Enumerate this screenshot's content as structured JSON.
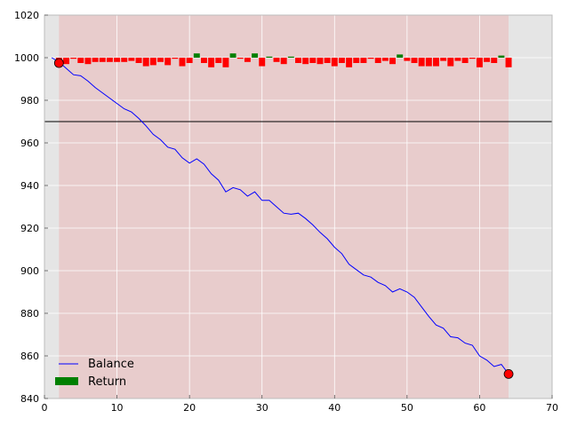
{
  "chart_data": {
    "type": "line",
    "xlim": [
      0,
      70
    ],
    "ylim": [
      840,
      1020
    ],
    "xticks": [
      0,
      10,
      20,
      30,
      40,
      50,
      60,
      70
    ],
    "yticks": [
      840,
      860,
      880,
      900,
      920,
      940,
      960,
      980,
      1000,
      1020
    ],
    "grid": true,
    "legend_position": "lower-left",
    "reference_line_y": 970,
    "shaded_x_range": [
      2,
      64
    ],
    "colors": {
      "background": "#e5e5e5",
      "shaded_region": "#e8cccc",
      "grid": "#ffffff",
      "balance_line": "#0000ff",
      "return_positive": "#008000",
      "return_negative": "#ff0000",
      "marker": "#ff0000",
      "reference_line": "#000000"
    },
    "series": [
      {
        "name": "Balance",
        "x": [
          1,
          2,
          3,
          4,
          5,
          6,
          7,
          8,
          9,
          10,
          11,
          12,
          13,
          14,
          15,
          16,
          17,
          18,
          19,
          20,
          21,
          22,
          23,
          24,
          25,
          26,
          27,
          28,
          29,
          30,
          31,
          32,
          33,
          34,
          35,
          36,
          37,
          38,
          39,
          40,
          41,
          42,
          43,
          44,
          45,
          46,
          47,
          48,
          49,
          50,
          51,
          52,
          53,
          54,
          55,
          56,
          57,
          58,
          59,
          60,
          61,
          62,
          63,
          64
        ],
        "y": [
          1000,
          998,
          995,
          992,
          991.5,
          989,
          986,
          983.5,
          981,
          978.5,
          976,
          974.5,
          971.5,
          968,
          964,
          961.5,
          958,
          957,
          953,
          950.5,
          952.5,
          950,
          945.5,
          942.5,
          937,
          939,
          938,
          935,
          937,
          933,
          933,
          930,
          927,
          926.5,
          927,
          924.5,
          921.5,
          918,
          915,
          911,
          908,
          903,
          900.5,
          898,
          897,
          894.5,
          893,
          890,
          891.5,
          890,
          887.5,
          883,
          878.5,
          874.5,
          873,
          869,
          868.5,
          866,
          865,
          860,
          858,
          855,
          856,
          851.5
        ]
      },
      {
        "name": "Return",
        "x": [
          2,
          3,
          4,
          5,
          6,
          7,
          8,
          9,
          10,
          11,
          12,
          13,
          14,
          15,
          16,
          17,
          18,
          19,
          20,
          21,
          22,
          23,
          24,
          25,
          26,
          27,
          28,
          29,
          30,
          31,
          32,
          33,
          34,
          35,
          36,
          37,
          38,
          39,
          40,
          41,
          42,
          43,
          44,
          45,
          46,
          47,
          48,
          49,
          50,
          51,
          52,
          53,
          54,
          55,
          56,
          57,
          58,
          59,
          60,
          61,
          62,
          63,
          64
        ],
        "values": [
          -3,
          -3,
          -0.5,
          -2.5,
          -3,
          -2,
          -2,
          -2,
          -2,
          -2,
          -1.5,
          -2.5,
          -4,
          -3.5,
          -2,
          -3.5,
          -0.5,
          -4,
          -2.5,
          2,
          -2.5,
          -4.5,
          -2.5,
          -4.5,
          2,
          -0.5,
          -2,
          2,
          -4,
          0.5,
          -2,
          -3,
          0.5,
          -2.5,
          -3,
          -2.5,
          -3,
          -2.5,
          -4,
          -2.5,
          -4.5,
          -2.5,
          -2.5,
          -0.5,
          -2.5,
          -1.5,
          -3,
          1.5,
          -1.5,
          -2.5,
          -4,
          -4,
          -4,
          -1.5,
          -4,
          -1.5,
          -2.5,
          -0.5,
          -4.5,
          -2,
          -2.5,
          1,
          -4.5
        ]
      }
    ],
    "markers": [
      {
        "x": 2,
        "y": 997.5
      },
      {
        "x": 64,
        "y": 851.5
      }
    ]
  }
}
